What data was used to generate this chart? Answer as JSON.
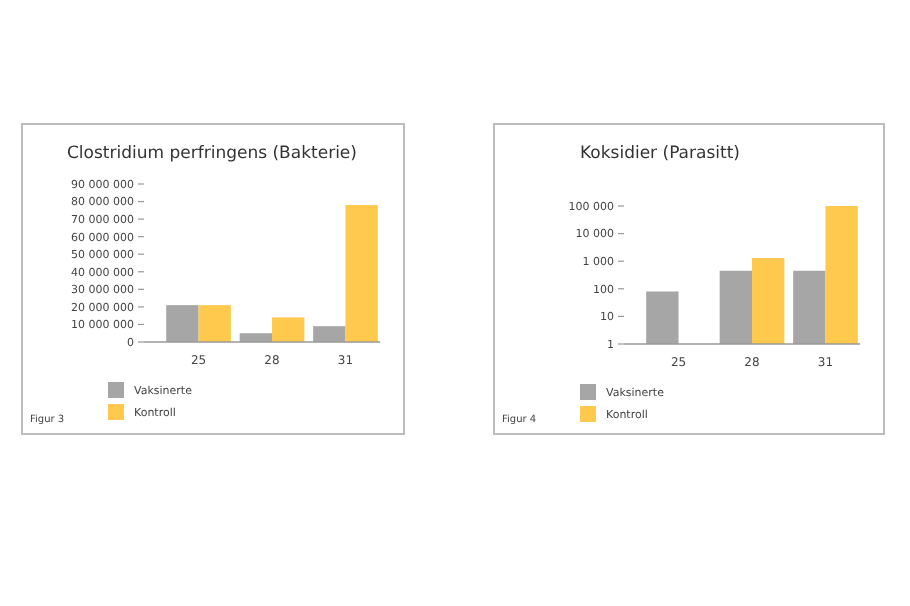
{
  "chart_data": [
    {
      "type": "bar",
      "title": "Clostridium perfringens (Bakterie)",
      "categories": [
        "25",
        "28",
        "31"
      ],
      "series": [
        {
          "name": "Vaksinerte",
          "color": "#a6a6a6",
          "values": [
            21000000,
            5000000,
            9000000
          ]
        },
        {
          "name": "Kontroll",
          "color": "#ffc94d",
          "values": [
            21000000,
            14000000,
            78000000
          ]
        }
      ],
      "ylim": [
        0,
        90000000
      ],
      "yticks": [
        0,
        {
          "value": 10000000,
          "label": "10 000 000"
        },
        {
          "value": 20000000,
          "label": "20 000 000"
        },
        {
          "value": 30000000,
          "label": "30 000 000"
        },
        {
          "value": 40000000,
          "label": "40 000 000"
        },
        {
          "value": 50000000,
          "label": "50 000 000"
        },
        {
          "value": 60000000,
          "label": "60 000 000"
        },
        {
          "value": 70000000,
          "label": "70 000 000"
        },
        {
          "value": 80000000,
          "label": "80 000 000"
        },
        {
          "value": 90000000,
          "label": "90 000 000"
        }
      ],
      "grid": false,
      "legend": "bottom left",
      "annotations": [
        "Figur 3"
      ]
    },
    {
      "type": "bar",
      "title": "Koksidier (Parasitt)",
      "categories": [
        "25",
        "28",
        "31"
      ],
      "series": [
        {
          "name": "Vaksinerte",
          "color": "#a6a6a6",
          "values": [
            80,
            450,
            450
          ]
        },
        {
          "name": "Kontroll",
          "color": "#ffc94d",
          "values": [
            null,
            1300,
            100000
          ]
        }
      ],
      "log": true,
      "ylim": [
        1,
        100000
      ],
      "yticks": [
        1,
        10,
        100,
        {
          "value": 1000,
          "label": "1 000"
        },
        {
          "value": 10000,
          "label": "10 000"
        },
        {
          "value": 100000,
          "label": "100 000"
        }
      ],
      "grid": false,
      "legend": "bottom left",
      "annotations": [
        "Figur 4"
      ]
    }
  ]
}
